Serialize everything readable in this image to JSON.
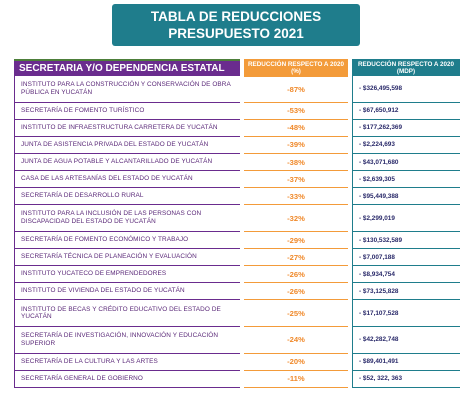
{
  "title": {
    "line1": "TABLA DE REDUCCIONES",
    "line2": "PRESUPUESTO 2021"
  },
  "headers": {
    "dependencia": "SECRETARIA Y/O DEPENDENCIA ESTATAL",
    "reduccion_pct": "REDUCCIÓN RESPECTO A 2020 (%)",
    "reduccion_mdp": "REDUCCIÓN RESPECTO A 2020 (MDP)"
  },
  "rows": [
    {
      "dependencia": "Instituto para la Construcción y Conservación de Obra Pública en Yucatán",
      "pct": "-87%",
      "mdp": "- $326,495,598"
    },
    {
      "dependencia": "Secretaría de Fomento Turístico",
      "pct": "-53%",
      "mdp": "- $67,650,912"
    },
    {
      "dependencia": "Instituto de Infraestructura Carretera de Yucatán",
      "pct": "-48%",
      "mdp": "- $177,262,369"
    },
    {
      "dependencia": "Junta de Asistencia Privada del Estado de Yucatán",
      "pct": "-39%",
      "mdp": "- $2,224,693"
    },
    {
      "dependencia": "Junta de Agua Potable y Alcantarillado de Yucatán",
      "pct": "-38%",
      "mdp": "- $43,071,680"
    },
    {
      "dependencia": "Casa de las Artesanías del Estado de Yucatán",
      "pct": "-37%",
      "mdp": "- $2,639,305"
    },
    {
      "dependencia": "Secretaría de Desarrollo Rural",
      "pct": "-33%",
      "mdp": "- $95,449,388"
    },
    {
      "dependencia": "Instituto para la Inclusión de las Personas con Discapacidad del Estado de Yucatán",
      "pct": "-32%",
      "mdp": "- $2,299,019"
    },
    {
      "dependencia": "Secretaría de Fomento Económico y Trabajo",
      "pct": "-29%",
      "mdp": "- $130,532,589"
    },
    {
      "dependencia": "Secretaría Técnica de Planeación y Evaluación",
      "pct": "-27%",
      "mdp": "- $7,007,188"
    },
    {
      "dependencia": "Instituto Yucateco de Emprendedores",
      "pct": "-26%",
      "mdp": "- $8,934,754"
    },
    {
      "dependencia": "Instituto de Vivienda del Estado de Yucatán",
      "pct": "-26%",
      "mdp": "- $73,125,828"
    },
    {
      "dependencia": "Instituto de Becas y Crédito Educativo del Estado de Yucatán",
      "pct": "-25%",
      "mdp": "- $17,107,528"
    },
    {
      "dependencia": "Secretaría de Investigación, Innovación y Educación Superior",
      "pct": "-24%",
      "mdp": "- $42,282,748"
    },
    {
      "dependencia": "Secretaría de la Cultura y las Artes",
      "pct": "-20%",
      "mdp": "- $89,401,491"
    },
    {
      "dependencia": "Secretaría General de Gobierno",
      "pct": "-11%",
      "mdp": "- $52, 322, 363"
    }
  ]
}
